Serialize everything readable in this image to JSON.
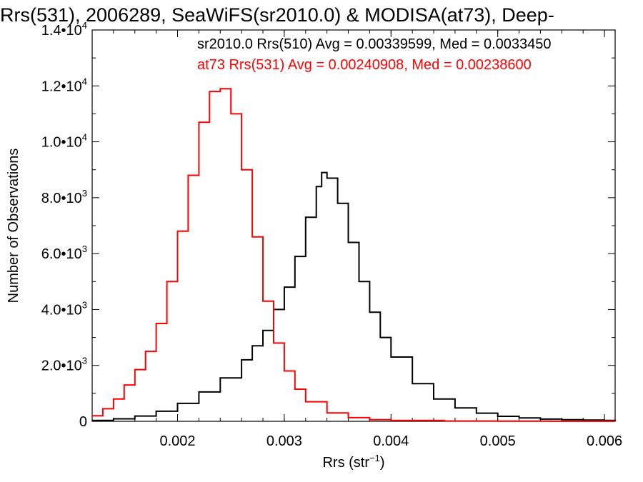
{
  "chart_data": {
    "type": "line",
    "title": "Rrs(531), 2006289, SeaWiFS(sr2010.0) & MODISA(at73), Deep-",
    "xlabel": "Rrs (str",
    "xlabel_sup": "−1",
    "xlabel_close": ")",
    "ylabel": "Number of Observations",
    "xlim": [
      0.0012,
      0.0061
    ],
    "ylim": [
      0,
      14000
    ],
    "x_ticks": [
      {
        "value": 0.002,
        "label": "0.002"
      },
      {
        "value": 0.003,
        "label": "0.003"
      },
      {
        "value": 0.004,
        "label": "0.004"
      },
      {
        "value": 0.005,
        "label": "0.005"
      },
      {
        "value": 0.006,
        "label": "0.006"
      }
    ],
    "y_ticks": [
      {
        "value": 0,
        "mant": "0",
        "exp": ""
      },
      {
        "value": 2000,
        "mant": "2.0•10",
        "exp": "3"
      },
      {
        "value": 4000,
        "mant": "4.0•10",
        "exp": "3"
      },
      {
        "value": 6000,
        "mant": "6.0•10",
        "exp": "3"
      },
      {
        "value": 8000,
        "mant": "8.0•10",
        "exp": "3"
      },
      {
        "value": 10000,
        "mant": "1.0•10",
        "exp": "4"
      },
      {
        "value": 12000,
        "mant": "1.2•10",
        "exp": "4"
      },
      {
        "value": 14000,
        "mant": "1.4•10",
        "exp": "4"
      }
    ],
    "annotations": [
      "sr2010.0 Rrs(510) Avg = 0.00339599, Med = 0.0033450",
      "at73 Rrs(531) Avg = 0.00240908, Med = 0.00238600"
    ],
    "series": [
      {
        "color": "#000000",
        "points": [
          [
            0.0012,
            30
          ],
          [
            0.0014,
            90
          ],
          [
            0.0016,
            190
          ],
          [
            0.0018,
            360
          ],
          [
            0.002,
            640
          ],
          [
            0.0022,
            1050
          ],
          [
            0.0024,
            1550
          ],
          [
            0.0026,
            2200
          ],
          [
            0.0027,
            2700
          ],
          [
            0.0028,
            3250
          ],
          [
            0.0029,
            4000
          ],
          [
            0.003,
            4800
          ],
          [
            0.0031,
            5900
          ],
          [
            0.0032,
            7300
          ],
          [
            0.0033,
            8400
          ],
          [
            0.00335,
            8900
          ],
          [
            0.0034,
            8700
          ],
          [
            0.0035,
            7800
          ],
          [
            0.0036,
            6400
          ],
          [
            0.0037,
            5000
          ],
          [
            0.0038,
            3900
          ],
          [
            0.0039,
            3000
          ],
          [
            0.004,
            2300
          ],
          [
            0.0042,
            1350
          ],
          [
            0.0044,
            800
          ],
          [
            0.0046,
            480
          ],
          [
            0.0048,
            290
          ],
          [
            0.005,
            180
          ],
          [
            0.0052,
            120
          ],
          [
            0.0054,
            80
          ],
          [
            0.0056,
            60
          ],
          [
            0.0058,
            45
          ],
          [
            0.006,
            30
          ],
          [
            0.0061,
            25
          ]
        ]
      },
      {
        "color": "#ff0000",
        "points": [
          [
            0.0012,
            200
          ],
          [
            0.0013,
            450
          ],
          [
            0.0014,
            800
          ],
          [
            0.0015,
            1300
          ],
          [
            0.0016,
            1850
          ],
          [
            0.0017,
            2500
          ],
          [
            0.0018,
            3500
          ],
          [
            0.0019,
            5000
          ],
          [
            0.002,
            6800
          ],
          [
            0.0021,
            8800
          ],
          [
            0.0022,
            10700
          ],
          [
            0.0023,
            11800
          ],
          [
            0.0024,
            11900
          ],
          [
            0.0025,
            11000
          ],
          [
            0.0026,
            9000
          ],
          [
            0.0027,
            6600
          ],
          [
            0.0028,
            4300
          ],
          [
            0.0029,
            2800
          ],
          [
            0.003,
            1800
          ],
          [
            0.0031,
            1150
          ],
          [
            0.0032,
            700
          ],
          [
            0.0034,
            300
          ],
          [
            0.0036,
            130
          ],
          [
            0.0038,
            60
          ],
          [
            0.004,
            30
          ],
          [
            0.0045,
            10
          ],
          [
            0.005,
            5
          ],
          [
            0.0055,
            2
          ],
          [
            0.0061,
            0
          ]
        ]
      }
    ]
  }
}
